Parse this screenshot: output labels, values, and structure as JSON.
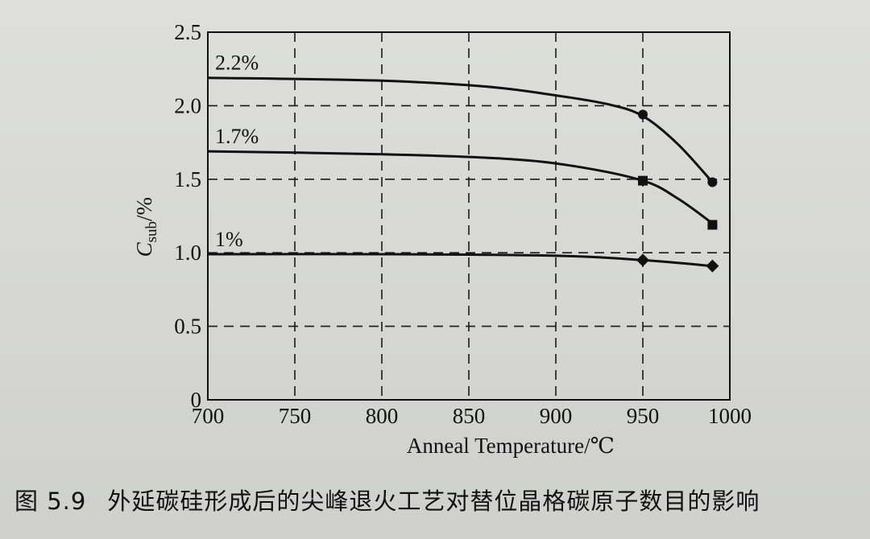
{
  "caption": {
    "number": "图 5.9",
    "text": "外延碳硅形成后的尖峰退火工艺对替位晶格碳原子数目的影响"
  },
  "chart_data": {
    "type": "line",
    "title": "",
    "xlabel": "Anneal Temperature/℃",
    "ylabel": {
      "symbol": "C",
      "subscript": "sub",
      "suffix": "/%"
    },
    "xlim": [
      700,
      1000
    ],
    "ylim": [
      0,
      2.5
    ],
    "xticks": [
      700,
      750,
      800,
      850,
      900,
      950,
      1000
    ],
    "xtick_labels": [
      "700",
      "750",
      "800",
      "850",
      "900",
      "950",
      "1000"
    ],
    "yticks": [
      0,
      0.5,
      1.0,
      1.5,
      2.0,
      2.5
    ],
    "ytick_labels": [
      "0",
      "0.5",
      "1.0",
      "1.5",
      "2.0",
      "2.5"
    ],
    "grid": "dashed",
    "series": [
      {
        "name": "2.2%",
        "marker": "circle",
        "curve": [
          [
            700,
            2.19
          ],
          [
            800,
            2.17
          ],
          [
            860,
            2.13
          ],
          [
            900,
            2.07
          ],
          [
            930,
            2.01
          ],
          [
            950,
            1.93
          ],
          [
            970,
            1.74
          ],
          [
            990,
            1.48
          ]
        ],
        "points": [
          [
            950,
            1.94
          ],
          [
            990,
            1.48
          ]
        ]
      },
      {
        "name": "1.7%",
        "marker": "square",
        "curve": [
          [
            700,
            1.69
          ],
          [
            800,
            1.67
          ],
          [
            870,
            1.64
          ],
          [
            910,
            1.59
          ],
          [
            950,
            1.49
          ],
          [
            970,
            1.37
          ],
          [
            990,
            1.2
          ]
        ],
        "points": [
          [
            950,
            1.49
          ],
          [
            990,
            1.19
          ]
        ]
      },
      {
        "name": "1%",
        "marker": "diamond",
        "curve": [
          [
            700,
            0.99
          ],
          [
            800,
            0.99
          ],
          [
            900,
            0.98
          ],
          [
            950,
            0.95
          ],
          [
            990,
            0.91
          ]
        ],
        "points": [
          [
            950,
            0.95
          ],
          [
            990,
            0.91
          ]
        ]
      }
    ]
  }
}
